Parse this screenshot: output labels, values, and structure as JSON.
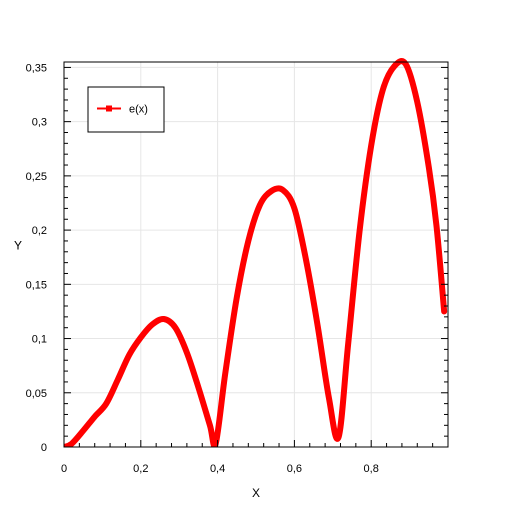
{
  "chart_data": {
    "type": "line",
    "title": "",
    "xlabel": "X",
    "ylabel": "Y",
    "xlim": [
      0,
      1
    ],
    "ylim": [
      0,
      0.355
    ],
    "grid": true,
    "legend_position": "top-left",
    "x_ticks": [
      {
        "value": 0,
        "label": "0"
      },
      {
        "value": 0.2,
        "label": "0,2"
      },
      {
        "value": 0.4,
        "label": "0,4"
      },
      {
        "value": 0.6,
        "label": "0,6"
      },
      {
        "value": 0.8,
        "label": "0,8"
      }
    ],
    "y_ticks": [
      {
        "value": 0,
        "label": "0"
      },
      {
        "value": 0.05,
        "label": "0,05"
      },
      {
        "value": 0.1,
        "label": "0,1"
      },
      {
        "value": 0.15,
        "label": "0,15"
      },
      {
        "value": 0.2,
        "label": "0,2"
      },
      {
        "value": 0.25,
        "label": "0,25"
      },
      {
        "value": 0.3,
        "label": "0,3"
      },
      {
        "value": 0.35,
        "label": "0,35"
      }
    ],
    "series": [
      {
        "name": "e(x)",
        "color": "#ff0000",
        "x": [
          0,
          0.02,
          0.05,
          0.08,
          0.11,
          0.14,
          0.17,
          0.2,
          0.23,
          0.26,
          0.29,
          0.32,
          0.35,
          0.38,
          0.395,
          0.42,
          0.45,
          0.48,
          0.51,
          0.54,
          0.57,
          0.6,
          0.63,
          0.66,
          0.69,
          0.715,
          0.74,
          0.77,
          0.8,
          0.83,
          0.86,
          0.89,
          0.92,
          0.95,
          0.97,
          0.99
        ],
        "y": [
          0.0,
          0.003,
          0.015,
          0.028,
          0.04,
          0.062,
          0.085,
          0.101,
          0.113,
          0.118,
          0.11,
          0.087,
          0.055,
          0.02,
          0.003,
          0.068,
          0.138,
          0.19,
          0.223,
          0.236,
          0.237,
          0.22,
          0.173,
          0.113,
          0.045,
          0.009,
          0.095,
          0.2,
          0.278,
          0.329,
          0.351,
          0.353,
          0.318,
          0.258,
          0.204,
          0.125
        ]
      }
    ]
  }
}
